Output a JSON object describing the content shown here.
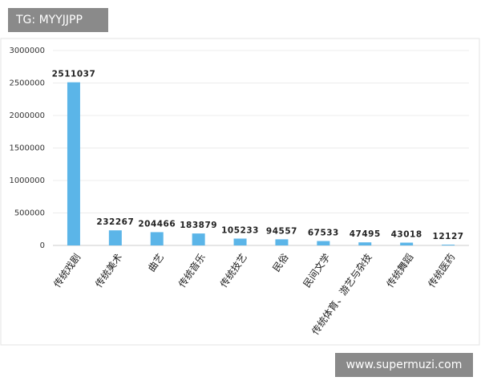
{
  "watermark_top": "TG: MYYJJPP",
  "watermark_bottom": "www.supermuzi.com",
  "chart_data": {
    "type": "bar",
    "categories": [
      "传统戏剧",
      "传统美术",
      "曲艺",
      "传统音乐",
      "传统技艺",
      "民俗",
      "民间文学",
      "传统体育、游艺与杂技",
      "传统舞蹈",
      "传统医药"
    ],
    "values": [
      2511037,
      232267,
      204466,
      183879,
      105233,
      94557,
      67533,
      47495,
      43018,
      12127
    ],
    "color": "#5bb5e8",
    "ylim": [
      0,
      3000000
    ],
    "yticks": [
      0,
      500000,
      1000000,
      1500000,
      2000000,
      2500000,
      3000000
    ],
    "grid": true
  }
}
